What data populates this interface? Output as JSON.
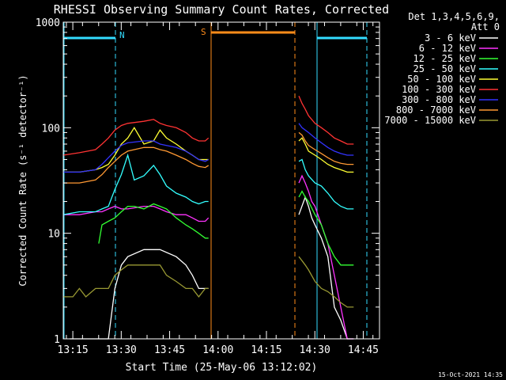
{
  "chart_data": {
    "type": "line",
    "title": "RHESSI Observing Summary Count Rates, Corrected",
    "xlabel": "Start Time (25-May-06 13:12:02)",
    "ylabel": "Corrected Count Rate (s⁻¹ detector⁻¹)",
    "xlim_minutes": [
      0,
      98
    ],
    "x_ticks": [
      "13:15",
      "13:30",
      "13:45",
      "14:00",
      "14:15",
      "14:30",
      "14:45"
    ],
    "y_scale": "log",
    "ylim": [
      1,
      1000
    ],
    "y_ticks": [
      "1",
      "10",
      "100",
      "1000"
    ],
    "legend_header": [
      "Det 1,3,4,5,6,9,",
      "Att 0"
    ],
    "legend_position": "right",
    "footer_date": "15-Oct-2021 14:35",
    "markers": {
      "N_label": "N",
      "S_label": "S"
    },
    "series": [
      {
        "name": "3 - 6 keV",
        "color": "#ffffff",
        "segments": [
          {
            "x": [
              2,
              10,
              12,
              14,
              16,
              18,
              20,
              25,
              30,
              35,
              38,
              40,
              42,
              44,
              45
            ],
            "y": [
              1,
              1,
              1,
              1,
              3,
              5,
              6,
              7,
              7,
              6,
              5,
              4,
              3,
              3,
              3
            ]
          },
          {
            "x": [
              73,
              75,
              76,
              77,
              78,
              80,
              82,
              84,
              86,
              88,
              90
            ],
            "y": [
              15,
              22,
              18,
              14,
              12,
              9,
              6,
              2,
              1.5,
              1,
              1
            ]
          }
        ]
      },
      {
        "name": "6 - 12 keV",
        "color": "#ff33ff",
        "segments": [
          {
            "x": [
              0,
              5,
              10,
              12,
              14,
              16,
              18,
              20,
              25,
              28,
              30,
              32,
              35,
              38,
              40,
              42,
              44,
              45
            ],
            "y": [
              15,
              15,
              16,
              16,
              17,
              18,
              17,
              17,
              18,
              18,
              17,
              16,
              15,
              15,
              14,
              13,
              13,
              14
            ]
          },
          {
            "x": [
              73,
              74,
              75,
              76,
              77,
              78,
              80,
              82,
              84,
              86,
              88,
              90
            ],
            "y": [
              30,
              35,
              30,
              25,
              20,
              18,
              12,
              8,
              4,
              2,
              1,
              1
            ]
          }
        ]
      },
      {
        "name": "12 - 25 keV",
        "color": "#33ff33",
        "segments": [
          {
            "x": [
              11,
              12,
              14,
              16,
              18,
              20,
              22,
              25,
              28,
              30,
              32,
              35,
              38,
              40,
              42,
              44,
              45
            ],
            "y": [
              8,
              12,
              13,
              14,
              16,
              18,
              18,
              17,
              19,
              18,
              17,
              14,
              12,
              11,
              10,
              9,
              9
            ]
          },
          {
            "x": [
              73,
              74,
              75,
              76,
              78,
              80,
              82,
              84,
              86,
              90
            ],
            "y": [
              22,
              25,
              22,
              20,
              15,
              12,
              8,
              6,
              5,
              5
            ]
          }
        ]
      },
      {
        "name": "25 - 50 keV",
        "color": "#33ffff",
        "segments": [
          {
            "x": [
              0,
              5,
              10,
              12,
              14,
              16,
              18,
              20,
              22,
              25,
              28,
              30,
              32,
              35,
              38,
              40,
              42,
              44,
              45
            ],
            "y": [
              15,
              16,
              16,
              17,
              18,
              26,
              36,
              55,
              32,
              35,
              44,
              36,
              28,
              24,
              22,
              20,
              19,
              20,
              20
            ]
          },
          {
            "x": [
              73,
              74,
              75,
              76,
              78,
              80,
              82,
              84,
              86,
              88,
              90
            ],
            "y": [
              48,
              50,
              40,
              35,
              30,
              28,
              24,
              20,
              18,
              17,
              17
            ]
          }
        ]
      },
      {
        "name": "50 - 100 keV",
        "color": "#ffff33",
        "segments": [
          {
            "x": [
              0,
              5,
              10,
              12,
              14,
              16,
              18,
              20,
              22,
              25,
              28,
              30,
              32,
              35,
              38,
              40,
              42,
              44,
              45
            ],
            "y": [
              38,
              38,
              40,
              42,
              45,
              55,
              70,
              80,
              100,
              70,
              75,
              95,
              80,
              70,
              60,
              55,
              50,
              50,
              50
            ]
          },
          {
            "x": [
              73,
              74,
              75,
              76,
              78,
              80,
              82,
              84,
              86,
              88,
              90
            ],
            "y": [
              75,
              80,
              70,
              60,
              55,
              50,
              45,
              42,
              40,
              38,
              38
            ]
          }
        ]
      },
      {
        "name": "100 - 300 keV",
        "color": "#ff3333",
        "segments": [
          {
            "x": [
              0,
              5,
              10,
              12,
              14,
              16,
              18,
              20,
              25,
              28,
              30,
              32,
              35,
              38,
              40,
              42,
              44,
              45
            ],
            "y": [
              55,
              58,
              62,
              70,
              80,
              95,
              105,
              110,
              115,
              120,
              110,
              105,
              100,
              90,
              80,
              75,
              75,
              80
            ]
          },
          {
            "x": [
              73,
              74,
              75,
              76,
              78,
              80,
              82,
              84,
              86,
              88,
              90
            ],
            "y": [
              200,
              170,
              150,
              130,
              110,
              100,
              90,
              80,
              75,
              70,
              70
            ]
          }
        ]
      },
      {
        "name": "300 - 800 keV",
        "color": "#3333ff",
        "segments": [
          {
            "x": [
              0,
              5,
              10,
              12,
              14,
              16,
              18,
              20,
              25,
              28,
              30,
              32,
              35,
              38,
              40,
              42,
              44,
              45
            ],
            "y": [
              38,
              38,
              40,
              45,
              52,
              60,
              68,
              72,
              75,
              75,
              70,
              68,
              65,
              60,
              55,
              50,
              48,
              50
            ]
          },
          {
            "x": [
              73,
              74,
              75,
              76,
              78,
              80,
              82,
              84,
              86,
              88,
              90
            ],
            "y": [
              110,
              100,
              95,
              90,
              80,
              72,
              65,
              60,
              57,
              55,
              55
            ]
          }
        ]
      },
      {
        "name": "800 - 7000 keV",
        "color": "#ff9933",
        "segments": [
          {
            "x": [
              0,
              5,
              10,
              12,
              14,
              16,
              18,
              20,
              25,
              28,
              30,
              32,
              35,
              38,
              40,
              42,
              44,
              45
            ],
            "y": [
              30,
              30,
              32,
              36,
              42,
              48,
              55,
              60,
              65,
              65,
              62,
              60,
              55,
              50,
              46,
              43,
              42,
              44
            ]
          },
          {
            "x": [
              73,
              74,
              75,
              76,
              78,
              80,
              82,
              84,
              86,
              88,
              90
            ],
            "y": [
              90,
              85,
              75,
              68,
              62,
              57,
              52,
              48,
              46,
              45,
              45
            ]
          }
        ]
      },
      {
        "name": "7000 - 15000 keV",
        "color": "#999933",
        "segments": [
          {
            "x": [
              0,
              3,
              5,
              7,
              10,
              12,
              14,
              16,
              18,
              20,
              25,
              28,
              30,
              32,
              35,
              38,
              40,
              42,
              44,
              45
            ],
            "y": [
              2.5,
              2.5,
              3,
              2.5,
              3,
              3,
              3,
              4,
              4.5,
              5,
              5,
              5,
              5,
              4,
              3.5,
              3,
              3,
              2.5,
              3,
              3
            ]
          },
          {
            "x": [
              73,
              74,
              75,
              76,
              78,
              80,
              82,
              84,
              86,
              88,
              90
            ],
            "y": [
              6,
              5.5,
              5,
              4.5,
              3.5,
              3,
              2.8,
              2.5,
              2.2,
              2,
              2
            ]
          }
        ]
      }
    ]
  }
}
